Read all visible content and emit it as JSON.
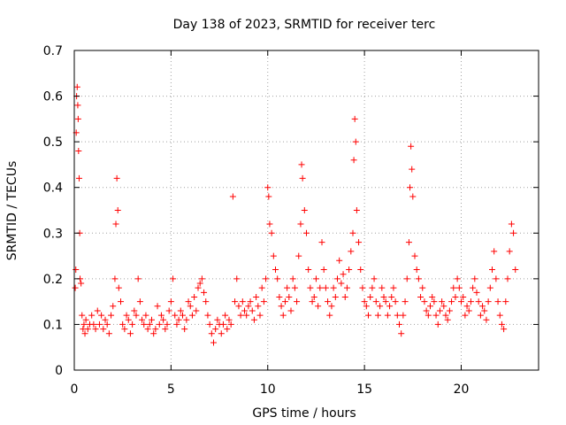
{
  "chart_data": {
    "type": "scatter",
    "title": "Day 138 of 2023, SRMTID for receiver terc",
    "xlabel": "GPS time / hours",
    "ylabel": "SRMTID / TECUs",
    "xlim": [
      0,
      24
    ],
    "ylim": [
      0,
      0.7
    ],
    "xticks": [
      0,
      5,
      10,
      15,
      20
    ],
    "xtick_labels": [
      "0",
      "5",
      "10",
      "15",
      "20"
    ],
    "yticks": [
      0,
      0.1,
      0.2,
      0.3,
      0.4,
      0.5,
      0.6,
      0.7
    ],
    "ytick_labels": [
      "0",
      "0.1",
      "0.2",
      "0.3",
      "0.4",
      "0.5",
      "0.6",
      "0.7"
    ],
    "grid": true,
    "marker": "plus",
    "marker_color": "#ff0000",
    "series": [
      {
        "name": "SRMTID",
        "x": [
          0.05,
          0.08,
          0.1,
          0.12,
          0.15,
          0.18,
          0.2,
          0.22,
          0.25,
          0.28,
          0.3,
          0.35,
          0.4,
          0.45,
          0.5,
          0.55,
          0.6,
          0.7,
          0.8,
          0.9,
          1.0,
          1.1,
          1.2,
          1.3,
          1.4,
          1.5,
          1.6,
          1.7,
          1.8,
          1.9,
          2.0,
          2.1,
          2.15,
          2.2,
          2.25,
          2.3,
          2.4,
          2.5,
          2.6,
          2.7,
          2.8,
          2.9,
          3.0,
          3.1,
          3.2,
          3.3,
          3.4,
          3.5,
          3.6,
          3.7,
          3.8,
          3.9,
          4.0,
          4.1,
          4.2,
          4.3,
          4.4,
          4.5,
          4.6,
          4.7,
          4.8,
          4.9,
          5.0,
          5.1,
          5.2,
          5.3,
          5.4,
          5.5,
          5.6,
          5.7,
          5.8,
          5.9,
          6.0,
          6.1,
          6.2,
          6.3,
          6.4,
          6.5,
          6.6,
          6.7,
          6.8,
          6.9,
          7.0,
          7.1,
          7.2,
          7.3,
          7.4,
          7.5,
          7.6,
          7.7,
          7.8,
          7.9,
          8.0,
          8.1,
          8.2,
          8.3,
          8.4,
          8.5,
          8.6,
          8.7,
          8.8,
          8.9,
          9.0,
          9.1,
          9.2,
          9.3,
          9.4,
          9.5,
          9.6,
          9.7,
          9.8,
          9.9,
          10.0,
          10.05,
          10.1,
          10.2,
          10.3,
          10.4,
          10.5,
          10.6,
          10.7,
          10.8,
          10.9,
          11.0,
          11.1,
          11.2,
          11.3,
          11.4,
          11.5,
          11.6,
          11.7,
          11.75,
          11.8,
          11.9,
          12.0,
          12.1,
          12.2,
          12.3,
          12.4,
          12.5,
          12.6,
          12.7,
          12.8,
          12.9,
          13.0,
          13.1,
          13.2,
          13.3,
          13.4,
          13.5,
          13.6,
          13.7,
          13.8,
          13.9,
          14.0,
          14.1,
          14.2,
          14.3,
          14.4,
          14.45,
          14.5,
          14.55,
          14.6,
          14.7,
          14.8,
          14.9,
          15.0,
          15.1,
          15.2,
          15.3,
          15.4,
          15.5,
          15.6,
          15.7,
          15.8,
          15.9,
          16.0,
          16.1,
          16.2,
          16.3,
          16.4,
          16.5,
          16.6,
          16.7,
          16.8,
          16.9,
          17.0,
          17.1,
          17.2,
          17.3,
          17.35,
          17.4,
          17.45,
          17.5,
          17.6,
          17.7,
          17.8,
          17.9,
          18.0,
          18.1,
          18.2,
          18.3,
          18.4,
          18.5,
          18.6,
          18.7,
          18.8,
          18.9,
          19.0,
          19.1,
          19.2,
          19.3,
          19.4,
          19.5,
          19.6,
          19.7,
          19.8,
          19.9,
          20.0,
          20.1,
          20.2,
          20.3,
          20.4,
          20.5,
          20.6,
          20.7,
          20.8,
          20.9,
          21.0,
          21.1,
          21.2,
          21.3,
          21.4,
          21.5,
          21.6,
          21.7,
          21.8,
          21.9,
          22.0,
          22.1,
          22.2,
          22.3,
          22.4,
          22.5,
          22.6,
          22.7,
          22.8
        ],
        "y": [
          0.18,
          0.22,
          0.52,
          0.6,
          0.62,
          0.58,
          0.55,
          0.48,
          0.42,
          0.3,
          0.2,
          0.19,
          0.12,
          0.09,
          0.1,
          0.08,
          0.11,
          0.09,
          0.1,
          0.12,
          0.1,
          0.09,
          0.13,
          0.1,
          0.12,
          0.09,
          0.11,
          0.1,
          0.08,
          0.12,
          0.14,
          0.2,
          0.32,
          0.42,
          0.35,
          0.18,
          0.15,
          0.1,
          0.09,
          0.12,
          0.11,
          0.08,
          0.1,
          0.13,
          0.12,
          0.2,
          0.15,
          0.11,
          0.1,
          0.12,
          0.09,
          0.1,
          0.11,
          0.08,
          0.09,
          0.14,
          0.1,
          0.12,
          0.11,
          0.09,
          0.1,
          0.13,
          0.15,
          0.2,
          0.12,
          0.1,
          0.11,
          0.13,
          0.12,
          0.09,
          0.11,
          0.15,
          0.14,
          0.12,
          0.16,
          0.13,
          0.18,
          0.19,
          0.2,
          0.17,
          0.15,
          0.12,
          0.1,
          0.08,
          0.06,
          0.09,
          0.11,
          0.1,
          0.08,
          0.1,
          0.12,
          0.09,
          0.11,
          0.1,
          0.38,
          0.15,
          0.2,
          0.14,
          0.12,
          0.15,
          0.13,
          0.12,
          0.14,
          0.15,
          0.13,
          0.11,
          0.16,
          0.14,
          0.12,
          0.18,
          0.15,
          0.2,
          0.4,
          0.38,
          0.32,
          0.3,
          0.25,
          0.22,
          0.2,
          0.16,
          0.14,
          0.12,
          0.15,
          0.18,
          0.16,
          0.13,
          0.2,
          0.18,
          0.15,
          0.25,
          0.32,
          0.45,
          0.42,
          0.35,
          0.3,
          0.22,
          0.18,
          0.15,
          0.16,
          0.2,
          0.14,
          0.18,
          0.28,
          0.22,
          0.18,
          0.15,
          0.12,
          0.14,
          0.18,
          0.16,
          0.2,
          0.24,
          0.19,
          0.21,
          0.16,
          0.18,
          0.22,
          0.26,
          0.3,
          0.46,
          0.55,
          0.5,
          0.35,
          0.28,
          0.22,
          0.18,
          0.15,
          0.14,
          0.12,
          0.16,
          0.18,
          0.2,
          0.15,
          0.12,
          0.14,
          0.18,
          0.16,
          0.15,
          0.12,
          0.14,
          0.16,
          0.18,
          0.15,
          0.12,
          0.1,
          0.08,
          0.12,
          0.15,
          0.2,
          0.28,
          0.4,
          0.49,
          0.44,
          0.38,
          0.25,
          0.22,
          0.2,
          0.16,
          0.18,
          0.15,
          0.13,
          0.12,
          0.14,
          0.16,
          0.15,
          0.12,
          0.1,
          0.13,
          0.15,
          0.14,
          0.12,
          0.11,
          0.13,
          0.15,
          0.18,
          0.16,
          0.2,
          0.18,
          0.15,
          0.16,
          0.12,
          0.14,
          0.13,
          0.15,
          0.18,
          0.2,
          0.17,
          0.15,
          0.12,
          0.14,
          0.13,
          0.11,
          0.15,
          0.18,
          0.22,
          0.26,
          0.2,
          0.15,
          0.12,
          0.1,
          0.09,
          0.15,
          0.2,
          0.26,
          0.32,
          0.3,
          0.22
        ]
      }
    ]
  }
}
